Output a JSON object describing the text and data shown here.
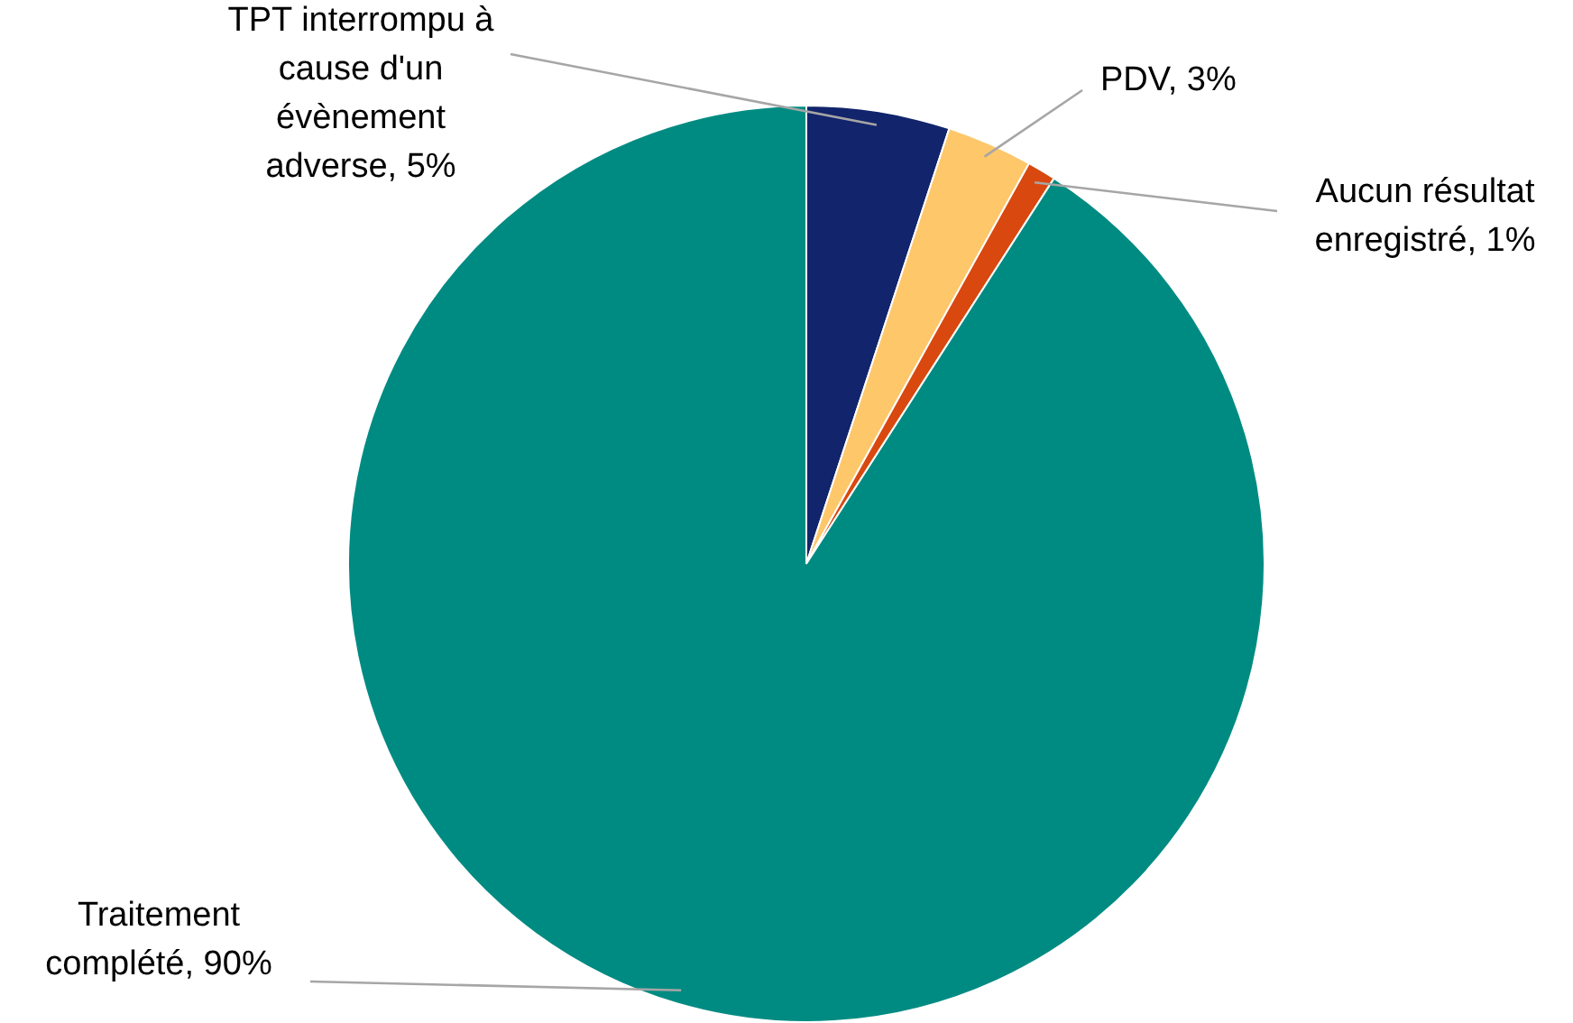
{
  "chart_data": {
    "type": "pie",
    "categories": [
      "TPT interrompu à cause d'un évènement adverse",
      "PDV",
      "Aucun résultat enregistré",
      "Traitement complété"
    ],
    "values": [
      5,
      3,
      1,
      90
    ],
    "value_labels": [
      "5%",
      "3%",
      "1%",
      "90%"
    ],
    "colors": [
      "#12246b",
      "#fdc76a",
      "#d9480f",
      "#008b82"
    ],
    "legend": false
  }
}
